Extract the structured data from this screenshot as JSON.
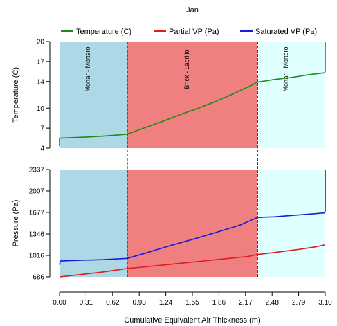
{
  "chart_data": {
    "type": "line",
    "title": "Jan",
    "xlabel": "Cumulative Equivalent Air Thickness (m)",
    "xlim": [
      0,
      3.1
    ],
    "x_ticks": [
      "0.00",
      "0.31",
      "0.62",
      "0.93",
      "1.24",
      "1.55",
      "1.86",
      "2.17",
      "2.48",
      "2.79",
      "3.10"
    ],
    "layers": [
      {
        "label": "Mortar - Mortero",
        "x_start": 0.0,
        "x_end": 0.79,
        "color": "#add8e6"
      },
      {
        "label": "Brick - Ladrillo",
        "x_start": 0.79,
        "x_end": 2.31,
        "color": "#f08080"
      },
      {
        "label": "Mortar - Mortero",
        "x_start": 2.31,
        "x_end": 3.1,
        "color": "#e0ffff"
      }
    ],
    "legend": {
      "placement": "top",
      "entries": [
        {
          "name": "Temperature (C)",
          "color": "#1a8c1a"
        },
        {
          "name": "Partial VP (Pa)",
          "color": "#e51a1a"
        },
        {
          "name": "Saturated VP (Pa)",
          "color": "#1a1ad9"
        }
      ]
    },
    "panels": [
      {
        "ylabel": "Temperature (C)",
        "ylim": [
          4,
          20
        ],
        "y_ticks": [
          "4",
          "7",
          "10",
          "14",
          "17",
          "20"
        ],
        "series": [
          {
            "name": "Temperature (C)",
            "color": "#1a8c1a",
            "x": [
              0.0,
              0.0,
              0.01,
              0.1,
              0.3,
              0.5,
              0.7,
              0.79,
              1.0,
              1.2,
              1.4,
              1.6,
              1.8,
              2.0,
              2.2,
              2.31,
              2.5,
              2.7,
              2.9,
              3.09,
              3.1,
              3.1
            ],
            "y": [
              4.3,
              5.4,
              5.5,
              5.55,
              5.65,
              5.8,
              6.0,
              6.1,
              7.1,
              8.0,
              9.0,
              9.9,
              10.9,
              12.0,
              13.2,
              13.9,
              14.3,
              14.6,
              15.0,
              15.3,
              15.5,
              20.0
            ]
          }
        ]
      },
      {
        "ylabel": "Pressure (Pa)",
        "ylim": [
          686,
          2337
        ],
        "y_ticks": [
          "686",
          "1016",
          "1346",
          "1677",
          "2007",
          "2337"
        ],
        "series": [
          {
            "name": "Partial VP (Pa)",
            "color": "#e51a1a",
            "x": [
              0.0,
              0.1,
              0.3,
              0.5,
              0.79,
              1.0,
              1.3,
              1.6,
              1.9,
              2.2,
              2.31,
              2.5,
              2.8,
              3.0,
              3.1
            ],
            "y": [
              686,
              700,
              730,
              760,
              815,
              840,
              880,
              920,
              960,
              1000,
              1030,
              1060,
              1110,
              1150,
              1180
            ]
          },
          {
            "name": "Saturated VP (Pa)",
            "color": "#1a1ad9",
            "x": [
              0.0,
              0.01,
              0.2,
              0.5,
              0.79,
              1.0,
              1.3,
              1.6,
              1.9,
              2.1,
              2.31,
              2.5,
              2.8,
              3.0,
              3.09,
              3.1,
              3.1
            ],
            "y": [
              870,
              930,
              940,
              950,
              970,
              1050,
              1170,
              1280,
              1400,
              1480,
              1600,
              1610,
              1640,
              1660,
              1670,
              1700,
              2337
            ]
          }
        ]
      }
    ]
  }
}
